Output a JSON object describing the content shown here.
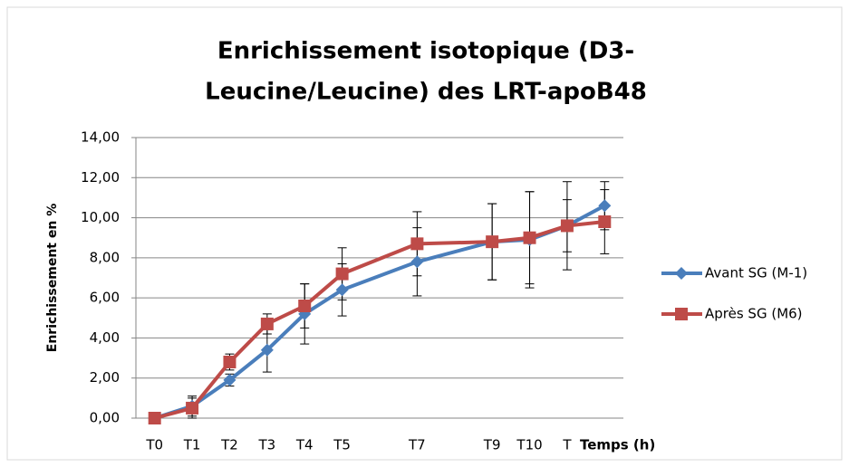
{
  "chart_data": {
    "type": "line",
    "title": [
      "Enrichissement  isotopique (D3-",
      "Leucine/Leucine) des LRT-apoB48"
    ],
    "y_label": "Enrichissement en %",
    "x_label": "Temps (h)",
    "x": [
      0,
      1,
      2,
      3,
      4,
      5,
      7,
      9,
      10,
      11,
      12
    ],
    "xlim": [
      -0.5,
      12.5
    ],
    "xticks": [
      {
        "value": 0,
        "label": "T0"
      },
      {
        "value": 1,
        "label": "T1"
      },
      {
        "value": 2,
        "label": "T2"
      },
      {
        "value": 3,
        "label": "T3"
      },
      {
        "value": 4,
        "label": "T4"
      },
      {
        "value": 5,
        "label": "T5"
      },
      {
        "value": 7,
        "label": "T7"
      },
      {
        "value": 9,
        "label": "T9"
      },
      {
        "value": 10,
        "label": "T10"
      },
      {
        "value": 11,
        "label": "T"
      }
    ],
    "ylim": [
      0,
      14
    ],
    "yticks": [
      {
        "value": 0,
        "label": "0,00"
      },
      {
        "value": 2,
        "label": "2,00"
      },
      {
        "value": 4,
        "label": "4,00"
      },
      {
        "value": 6,
        "label": "6,00"
      },
      {
        "value": 8,
        "label": "8,00"
      },
      {
        "value": 10,
        "label": "10,00"
      },
      {
        "value": 12,
        "label": "12,00"
      },
      {
        "value": 14,
        "label": "14,00"
      }
    ],
    "grid": true,
    "legend": "right",
    "series": [
      {
        "name": "Avant SG (M-1)",
        "color": "#4a7ebb",
        "marker": "diamond",
        "values": [
          0,
          0.6,
          1.9,
          3.4,
          5.2,
          6.4,
          7.8,
          8.8,
          8.9,
          9.6,
          10.6
        ],
        "errors": [
          0,
          0.5,
          0.3,
          1.1,
          1.5,
          1.3,
          1.7,
          1.9,
          2.4,
          2.2,
          1.2
        ]
      },
      {
        "name": "Après SG (M6)",
        "color": "#be4b48",
        "marker": "square",
        "values": [
          0,
          0.5,
          2.8,
          4.7,
          5.6,
          7.2,
          8.7,
          8.8,
          9.0,
          9.6,
          9.8
        ],
        "errors": [
          0,
          0.5,
          0.4,
          0.5,
          1.1,
          1.3,
          1.6,
          1.9,
          2.3,
          1.3,
          1.6
        ]
      }
    ]
  }
}
